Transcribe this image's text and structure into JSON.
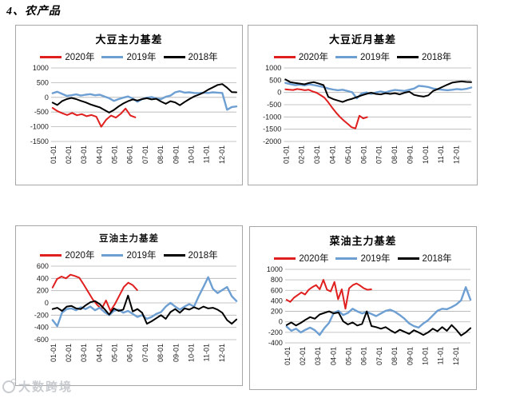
{
  "page": {
    "heading": "4、农产品",
    "watermark_text": "大数跨境"
  },
  "chart_data": [
    {
      "type": "line",
      "title": "大豆主力基差",
      "xlabel": "",
      "ylabel": "",
      "grid": true,
      "legend_position": "top",
      "ylim": [
        -1500,
        1000
      ],
      "yticks": [
        1000,
        500,
        0,
        -500,
        -1000,
        -1500
      ],
      "x_labels": [
        "01-01",
        "02-01",
        "03-01",
        "04-01",
        "05-01",
        "06-01",
        "07-01",
        "08-01",
        "09-01",
        "10-01",
        "11-01",
        "12-01"
      ],
      "series": [
        {
          "name": "2020年",
          "color": "#e01f1f",
          "span": [
            0,
            0.45
          ],
          "values": [
            -360,
            -470,
            -540,
            -600,
            -530,
            -610,
            -570,
            -640,
            -600,
            -660,
            -1000,
            -760,
            -620,
            -690,
            -560,
            -380,
            -620,
            -680
          ]
        },
        {
          "name": "2019年",
          "color": "#6d9fd3",
          "span": [
            0,
            1
          ],
          "values": [
            140,
            190,
            120,
            50,
            70,
            100,
            60,
            90,
            110,
            70,
            90,
            30,
            -30,
            -120,
            -60,
            -10,
            30,
            -40,
            -150,
            -60,
            -10,
            10,
            -40,
            -60,
            20,
            60,
            170,
            210,
            160,
            170,
            150,
            140,
            160,
            150,
            170,
            160,
            150,
            -420,
            -330,
            -310
          ]
        },
        {
          "name": "2018年",
          "color": "#000000",
          "span": [
            0,
            1
          ],
          "values": [
            -180,
            -260,
            -130,
            -60,
            -20,
            -60,
            -120,
            -170,
            -240,
            -290,
            -340,
            -430,
            -520,
            -430,
            -310,
            -210,
            -130,
            -70,
            -110,
            -60,
            -30,
            -70,
            -50,
            -140,
            -220,
            -130,
            -170,
            -270,
            -160,
            -60,
            30,
            90,
            160,
            260,
            340,
            420,
            450,
            330,
            180,
            170
          ]
        }
      ]
    },
    {
      "type": "line",
      "title": "大豆近月基差",
      "xlabel": "",
      "ylabel": "",
      "grid": true,
      "legend_position": "top",
      "ylim": [
        -2000,
        1000
      ],
      "yticks": [
        1000,
        500,
        0,
        -500,
        -1000,
        -1500,
        -2000
      ],
      "x_labels": [
        "01-01",
        "02-01",
        "03-01",
        "04-01",
        "05-01",
        "06-01",
        "07-01",
        "08-01",
        "09-01",
        "10-01",
        "11-01",
        "12-01"
      ],
      "series": [
        {
          "name": "2020年",
          "color": "#e01f1f",
          "span": [
            0,
            0.44
          ],
          "values": [
            130,
            110,
            100,
            140,
            120,
            90,
            110,
            40,
            -10,
            -110,
            -210,
            -400,
            -620,
            -820,
            -1000,
            -1150,
            -1280,
            -1420,
            -1470,
            -950,
            -1060,
            -1010
          ]
        },
        {
          "name": "2019年",
          "color": "#6d9fd3",
          "span": [
            0,
            1
          ],
          "values": [
            390,
            340,
            300,
            320,
            290,
            330,
            300,
            260,
            220,
            160,
            120,
            90,
            110,
            60,
            10,
            -240,
            -40,
            0,
            -60,
            0,
            40,
            0,
            60,
            100,
            80,
            60,
            110,
            160,
            270,
            250,
            220,
            160,
            130,
            110,
            90,
            110,
            140,
            120,
            150,
            200
          ]
        },
        {
          "name": "2018年",
          "color": "#000000",
          "span": [
            0,
            1
          ],
          "values": [
            530,
            420,
            390,
            360,
            330,
            390,
            420,
            360,
            300,
            -180,
            -270,
            -330,
            -390,
            -310,
            -260,
            -190,
            -120,
            -60,
            -10,
            -60,
            -80,
            -30,
            -60,
            -30,
            -80,
            -10,
            30,
            -100,
            -140,
            -170,
            -120,
            60,
            140,
            230,
            320,
            400,
            430,
            450,
            430,
            420
          ]
        }
      ]
    },
    {
      "type": "line",
      "title": "豆油主力基差",
      "xlabel": "",
      "ylabel": "",
      "grid": true,
      "legend_position": "top",
      "ylim": [
        -600,
        600
      ],
      "yticks": [
        600,
        400,
        200,
        0,
        -200,
        -400,
        -600
      ],
      "x_labels": [
        "01-01",
        "02-01",
        "03-01",
        "04-01",
        "05-01",
        "06-01",
        "07-01",
        "08-01",
        "09-01",
        "10-01",
        "11-01",
        "12-01"
      ],
      "series": [
        {
          "name": "2020年",
          "color": "#e01f1f",
          "span": [
            0,
            0.46
          ],
          "values": [
            250,
            390,
            430,
            400,
            460,
            440,
            410,
            300,
            180,
            60,
            -30,
            -100,
            40,
            -130,
            -20,
            120,
            260,
            330,
            290,
            210
          ]
        },
        {
          "name": "2019年",
          "color": "#6d9fd3",
          "span": [
            0,
            1
          ],
          "values": [
            -280,
            -380,
            -160,
            -100,
            -90,
            -120,
            -70,
            -100,
            -60,
            -120,
            -80,
            -150,
            -200,
            -130,
            -110,
            -160,
            -130,
            -180,
            -230,
            -200,
            -260,
            -230,
            -180,
            -150,
            -60,
            0,
            -60,
            -110,
            -60,
            -20,
            -60,
            110,
            260,
            420,
            230,
            160,
            210,
            260,
            110,
            30
          ]
        },
        {
          "name": "2018年",
          "color": "#000000",
          "span": [
            0,
            1
          ],
          "values": [
            -100,
            -80,
            -130,
            -60,
            -50,
            -90,
            -100,
            -40,
            10,
            30,
            -20,
            -100,
            -190,
            -90,
            -130,
            -110,
            120,
            -140,
            -100,
            -160,
            -340,
            -300,
            -250,
            -200,
            -260,
            -150,
            -100,
            -160,
            -90,
            -110,
            -70,
            -100,
            -60,
            -90,
            -80,
            -110,
            -160,
            -280,
            -340,
            -270
          ]
        }
      ]
    },
    {
      "type": "line",
      "title": "菜油主力基差",
      "xlabel": "",
      "ylabel": "",
      "grid": true,
      "legend_position": "top",
      "ylim": [
        -400,
        1000
      ],
      "yticks": [
        1000,
        800,
        600,
        400,
        200,
        0,
        -200,
        -400
      ],
      "x_labels": [
        "01-01",
        "02-01",
        "03-01",
        "04-01",
        "05-01",
        "06-01",
        "07-01",
        "08-01",
        "09-01",
        "10-01",
        "11-01",
        "12-01"
      ],
      "series": [
        {
          "name": "2020年",
          "color": "#e01f1f",
          "span": [
            0,
            0.46
          ],
          "values": [
            420,
            380,
            460,
            510,
            560,
            520,
            610,
            660,
            700,
            620,
            800,
            610,
            580,
            760,
            430,
            620,
            250,
            640,
            700,
            730,
            690,
            640,
            610,
            620
          ]
        },
        {
          "name": "2019年",
          "color": "#6d9fd3",
          "span": [
            0,
            1
          ],
          "values": [
            -90,
            -170,
            -130,
            -200,
            -150,
            -110,
            -160,
            -250,
            -120,
            -20,
            170,
            210,
            130,
            170,
            250,
            200,
            160,
            190,
            150,
            110,
            160,
            210,
            230,
            190,
            130,
            60,
            -30,
            -80,
            -110,
            -30,
            30,
            120,
            210,
            250,
            240,
            280,
            330,
            410,
            660,
            420
          ]
        },
        {
          "name": "2018年",
          "color": "#000000",
          "span": [
            0,
            1
          ],
          "values": [
            -60,
            -10,
            -70,
            -20,
            40,
            90,
            60,
            140,
            170,
            200,
            160,
            180,
            10,
            -50,
            -10,
            -70,
            -40,
            200,
            -80,
            -100,
            -130,
            -100,
            -160,
            -210,
            -150,
            -190,
            -230,
            -160,
            -200,
            -250,
            -200,
            -130,
            -180,
            -100,
            -170,
            -60,
            -150,
            -260,
            -200,
            -120
          ]
        }
      ]
    }
  ]
}
